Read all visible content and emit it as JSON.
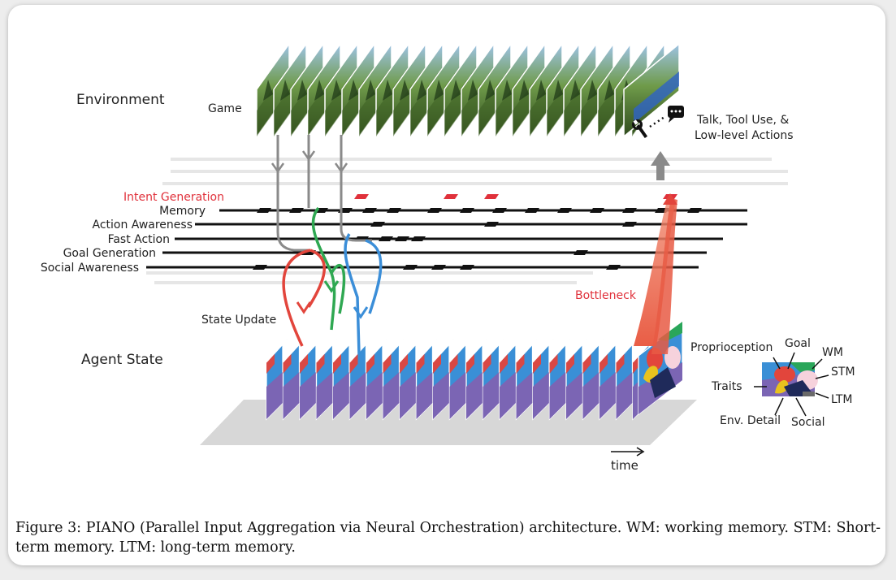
{
  "labels": {
    "environment": "Environment",
    "game": "Game",
    "agent_state": "Agent State",
    "state_update": "State Update",
    "bottleneck": "Bottleneck",
    "actions_line1": "Talk, Tool Use, &",
    "actions_line2": "Low-level Actions",
    "time": "time"
  },
  "modules": [
    "Intent Generation",
    "Memory",
    "Action Awareness",
    "Fast Action",
    "Goal Generation",
    "Social Awareness"
  ],
  "state_legend": {
    "proprioception": "Proprioception",
    "goal": "Goal",
    "wm": "WM",
    "stm": "STM",
    "traits": "Traits",
    "ltm": "LTM",
    "env_detail": "Env. Detail",
    "social": "Social"
  },
  "caption": "Figure 3: PIANO (Parallel Input Aggregation via Neural Orchestration) architecture. WM: working memory. STM: Short-term memory. LTM: long-term memory.",
  "colors": {
    "intent": "#e0313b",
    "state_red": "#e2453c",
    "state_green": "#2aa65a",
    "state_blue": "#3a8fd6",
    "state_purple": "#7b65b4",
    "state_navy": "#1f2a5a",
    "state_yellow": "#e8c21e",
    "state_pink": "#f6d2dc",
    "arrow_green": "#2fa852",
    "arrow_blue": "#3b8ed8",
    "arrow_gray": "#888888"
  },
  "icons": [
    "wrench-icon",
    "speech-bubble-icon",
    "time-arrow-icon"
  ]
}
